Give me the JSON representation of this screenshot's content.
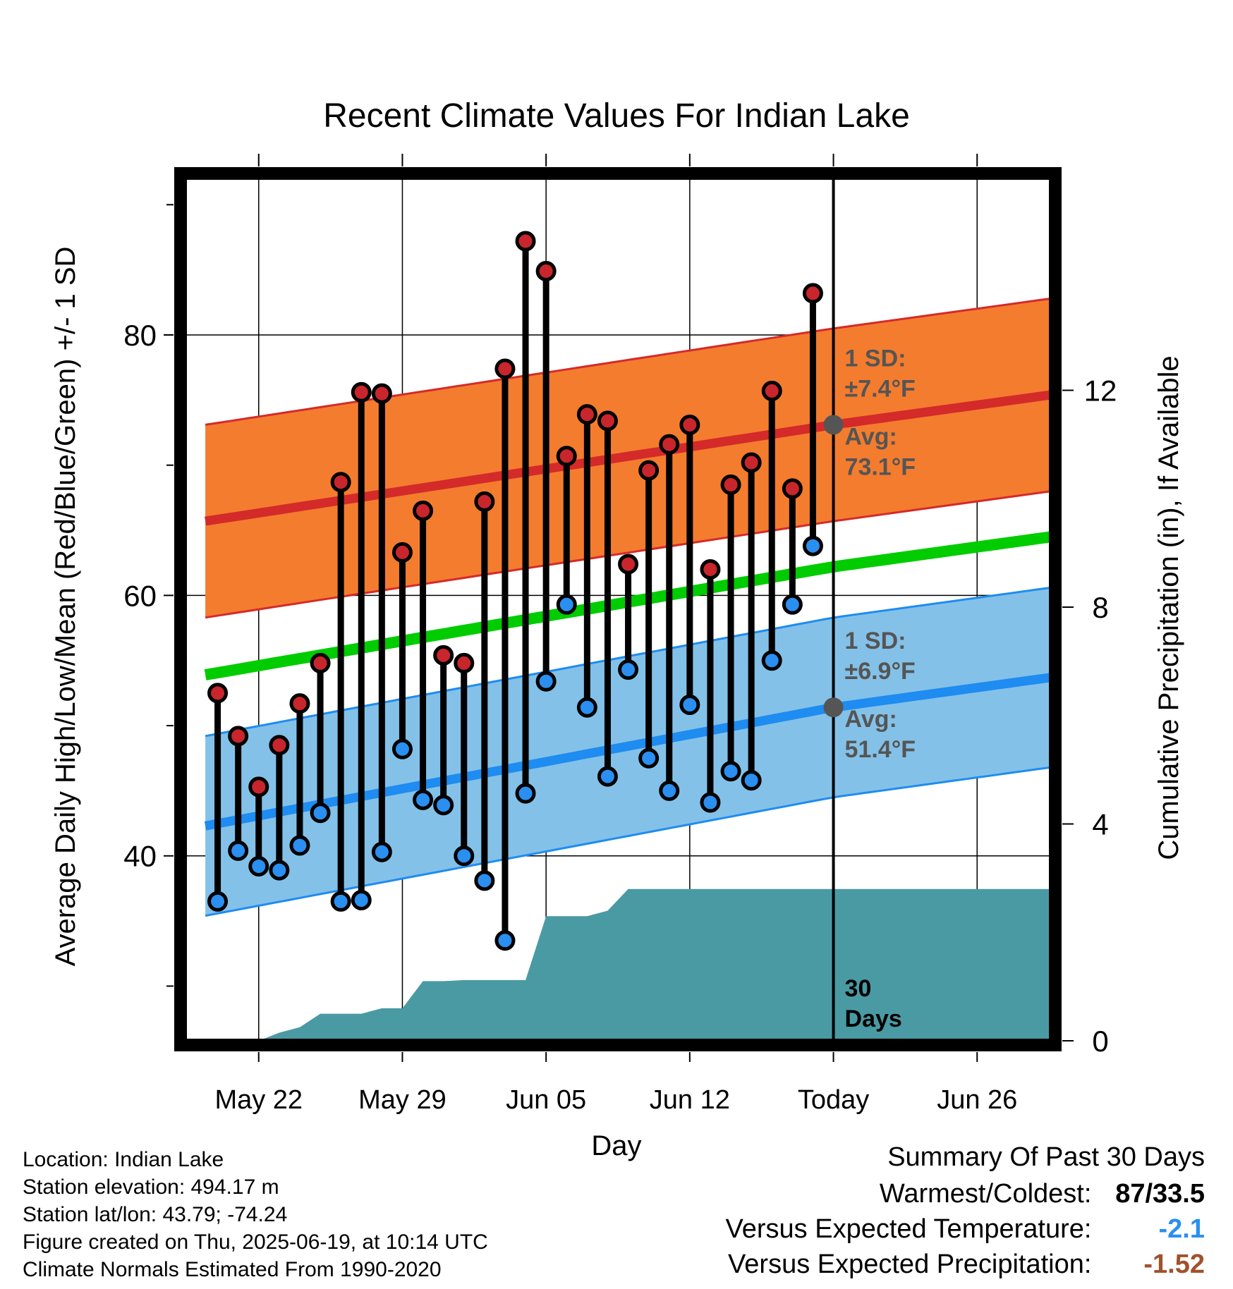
{
  "chart_data": {
    "type": "line",
    "title": "Recent Climate Values For Indian Lake",
    "xlabel": "Day",
    "ylabel": "Average Daily High/Low/Mean (Red/Blue/Green) +/- 1 SD",
    "y2label": "Cumulative Precipitation (in), If Available",
    "xlim": [
      -3.6,
      38.6
    ],
    "ylim": [
      25.8,
      92.4
    ],
    "y2lim": [
      0,
      16
    ],
    "x_ticks": [
      {
        "x": 0,
        "label": "May 22"
      },
      {
        "x": 7,
        "label": "May 29"
      },
      {
        "x": 14,
        "label": "Jun 05"
      },
      {
        "x": 21,
        "label": "Jun 12"
      },
      {
        "x": 28,
        "label": "Today"
      },
      {
        "x": 35,
        "label": "Jun 26"
      }
    ],
    "y_ticks_labeled": [
      40,
      60,
      80
    ],
    "y_ticks_minor": [
      30,
      50,
      70,
      90
    ],
    "y2_ticks": [
      0,
      4,
      8,
      12
    ],
    "grid": true,
    "today_x": 28,
    "normals": {
      "x": [
        -2.6,
        28,
        38.6
      ],
      "high_mean": [
        65.7,
        73.1,
        75.4
      ],
      "high_sd": 7.4,
      "low_mean": [
        42.3,
        51.4,
        53.7
      ],
      "low_sd": 6.9,
      "mean": [
        53.9,
        62.2,
        64.5
      ]
    },
    "daily": {
      "x": [
        -2,
        -1,
        0,
        1,
        2,
        3,
        4,
        5,
        6,
        7,
        8,
        9,
        10,
        11,
        12,
        13,
        14,
        15,
        16,
        17,
        18,
        19,
        20,
        21,
        22,
        23,
        24,
        25,
        26,
        27
      ],
      "high": [
        52.5,
        49.2,
        45.3,
        48.5,
        51.7,
        54.8,
        68.7,
        75.6,
        75.5,
        63.3,
        66.5,
        55.4,
        54.8,
        67.2,
        77.4,
        87.2,
        84.9,
        70.7,
        73.9,
        73.4,
        62.4,
        69.6,
        71.6,
        73.1,
        62.0,
        68.5,
        70.2,
        75.7,
        68.2,
        83.2
      ],
      "low": [
        36.5,
        40.4,
        39.2,
        38.9,
        40.8,
        43.3,
        36.5,
        36.6,
        40.3,
        48.2,
        44.3,
        43.9,
        40.0,
        38.1,
        33.5,
        44.8,
        53.4,
        59.3,
        51.4,
        46.1,
        54.3,
        47.5,
        45.0,
        51.6,
        44.1,
        46.5,
        45.8,
        55.0,
        59.3,
        63.8
      ]
    },
    "precip_cumulative": {
      "x": [
        0,
        1,
        2,
        3,
        4,
        5,
        6,
        7,
        8,
        9,
        10,
        11,
        12,
        13,
        14,
        15,
        16,
        17,
        18,
        19,
        20,
        21,
        22,
        23,
        24,
        25,
        26,
        27,
        28,
        38.6
      ],
      "y": [
        0.0,
        0.15,
        0.25,
        0.5,
        0.5,
        0.5,
        0.6,
        0.6,
        1.1,
        1.1,
        1.12,
        1.12,
        1.12,
        1.12,
        2.3,
        2.3,
        2.3,
        2.4,
        2.8,
        2.8,
        2.8,
        2.8,
        2.8,
        2.8,
        2.8,
        2.8,
        2.8,
        2.8,
        2.8,
        2.8
      ]
    },
    "annotations": {
      "high_sd_line1": "1 SD:",
      "high_sd_line2": "±7.4°F",
      "high_avg_line1": "Avg:",
      "high_avg_line2": "73.1°F",
      "low_sd_line1": "1 SD:",
      "low_sd_line2": "±6.9°F",
      "low_avg_line1": "Avg:",
      "low_avg_line2": "51.4°F",
      "days_line1": "30",
      "days_line2": "Days"
    },
    "colors": {
      "high_band": "#f47c2e",
      "high_line": "#d42a2a",
      "low_band": "#84c1e8",
      "low_line": "#1e8cf0",
      "mean_line": "#00cc00",
      "precip": "#4a9aa4",
      "marker_high": "#c8262c",
      "marker_low": "#2a8ff0",
      "annotation_text": "#555555"
    }
  },
  "meta": {
    "location": "Location: Indian Lake",
    "elevation": "Station elevation: 494.17 m",
    "latlon": "Station lat/lon: 43.79; -74.24",
    "created": "Figure created on Thu, 2025-06-19, at 10:14 UTC",
    "normals_period": "Climate Normals Estimated From 1990-2020"
  },
  "summary": {
    "title": "Summary Of Past 30 Days",
    "warmest_coldest_label": "Warmest/Coldest:",
    "warmest_coldest_value": "87/33.5",
    "temp_label": "Versus Expected Temperature:",
    "temp_value": "-2.1",
    "temp_color": "#2a8ff0",
    "precip_label": "Versus Expected Precipitation:",
    "precip_value": "-1.52",
    "precip_color": "#a0522d"
  }
}
